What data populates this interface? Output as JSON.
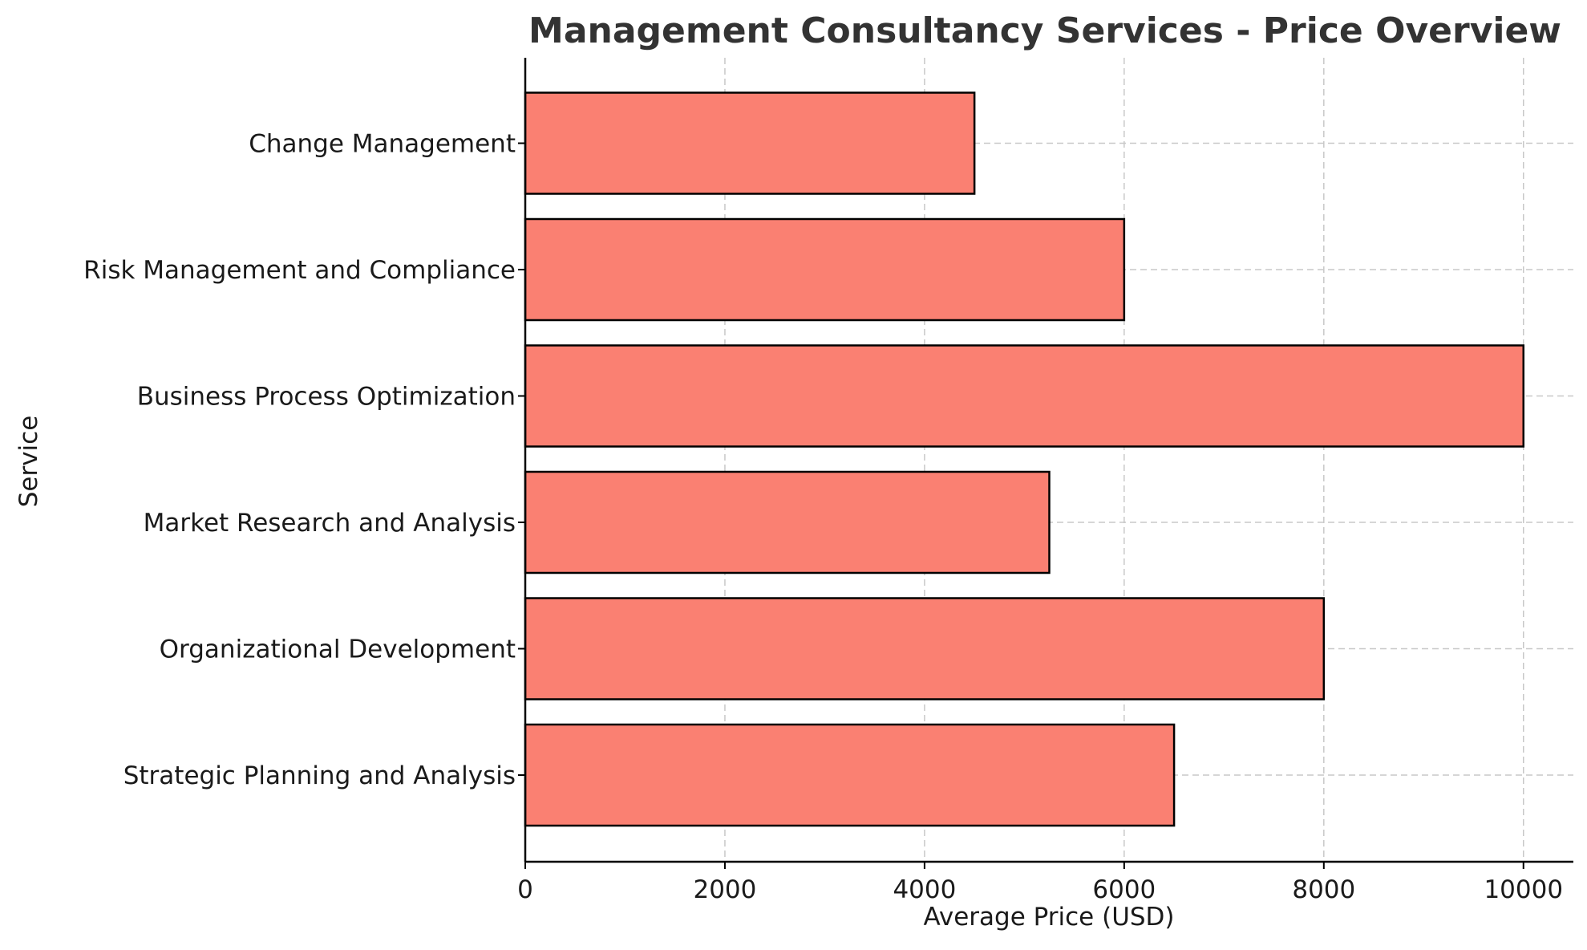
{
  "chart_data": {
    "type": "bar",
    "orientation": "horizontal",
    "title": "Management Consultancy Services - Price Overview",
    "xlabel": "Average Price (USD)",
    "ylabel": "Service",
    "categories": [
      "Strategic Planning and Analysis",
      "Organizational Development",
      "Market Research and Analysis",
      "Business Process Optimization",
      "Risk Management and Compliance",
      "Change Management"
    ],
    "values": [
      6500,
      8000,
      5250,
      10000,
      6000,
      4500
    ],
    "xlim": [
      0,
      10500
    ],
    "xticks": [
      0,
      2000,
      4000,
      6000,
      8000,
      10000
    ],
    "grid": true,
    "bar_color": "#fa8072",
    "bar_edge_color": "#000000",
    "title_color": "#333333"
  }
}
